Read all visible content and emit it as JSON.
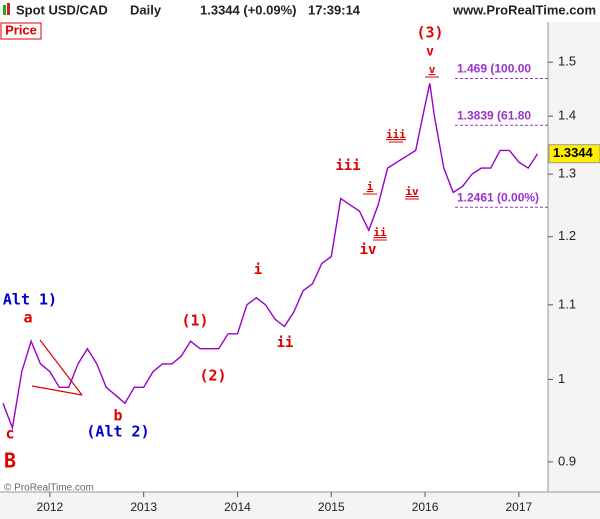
{
  "chart_data": {
    "type": "line",
    "title": "Spot USD/CAD",
    "timeframe": "Daily",
    "change": "1.3344 (+0.09%)",
    "time": "17:39:14",
    "site": "www.ProRealTime.com",
    "panel_label": "Price",
    "copyright": "© ProRealTime.com",
    "last_price": 1.3344,
    "color": "#9900cc",
    "x": [
      2011.5,
      2011.6,
      2011.7,
      2011.8,
      2011.9,
      2012.0,
      2012.1,
      2012.2,
      2012.3,
      2012.4,
      2012.5,
      2012.6,
      2012.7,
      2012.8,
      2012.9,
      2013.0,
      2013.1,
      2013.2,
      2013.3,
      2013.4,
      2013.5,
      2013.6,
      2013.7,
      2013.8,
      2013.9,
      2014.0,
      2014.1,
      2014.2,
      2014.3,
      2014.4,
      2014.5,
      2014.6,
      2014.7,
      2014.8,
      2014.9,
      2015.0,
      2015.1,
      2015.2,
      2015.3,
      2015.4,
      2015.5,
      2015.6,
      2015.7,
      2015.8,
      2015.9,
      2016.0,
      2016.05,
      2016.1,
      2016.2,
      2016.3,
      2016.4,
      2016.5,
      2016.6,
      2016.7,
      2016.8,
      2016.9,
      2017.0,
      2017.1,
      2017.2
    ],
    "values": [
      0.97,
      0.94,
      1.01,
      1.05,
      1.02,
      1.01,
      0.99,
      0.99,
      1.02,
      1.04,
      1.02,
      0.99,
      0.98,
      0.97,
      0.99,
      0.99,
      1.01,
      1.02,
      1.02,
      1.03,
      1.05,
      1.04,
      1.04,
      1.04,
      1.06,
      1.06,
      1.1,
      1.11,
      1.1,
      1.08,
      1.07,
      1.09,
      1.12,
      1.13,
      1.16,
      1.17,
      1.26,
      1.25,
      1.24,
      1.21,
      1.25,
      1.31,
      1.32,
      1.33,
      1.34,
      1.42,
      1.46,
      1.4,
      1.31,
      1.27,
      1.28,
      1.3,
      1.31,
      1.31,
      1.34,
      1.34,
      1.32,
      1.31,
      1.3344
    ],
    "xlim": [
      2011.5,
      2017.3
    ],
    "xticks": [
      2012,
      2013,
      2014,
      2015,
      2016,
      2017
    ],
    "ylim": [
      0.866,
      1.579
    ],
    "yticks": [
      0.9,
      1,
      1.1,
      1.2,
      1.3,
      1.4,
      1.5
    ],
    "log_scale": true,
    "fib_levels": [
      {
        "value": 1.469,
        "label": "1.469 (100.00"
      },
      {
        "value": 1.3839,
        "label": "1.3839 (61.80"
      },
      {
        "value": 1.2461,
        "label": "1.2461 (0.00%)"
      }
    ],
    "annotations": [
      {
        "text": "(3)",
        "color": "#e00000"
      },
      {
        "text": "v",
        "color": "#e00000"
      },
      {
        "text": "v",
        "color": "#e00000"
      },
      {
        "text": "iii",
        "color": "#e00000"
      },
      {
        "text": "iii",
        "color": "#e00000"
      },
      {
        "text": "i",
        "color": "#e00000"
      },
      {
        "text": "ii",
        "color": "#e00000"
      },
      {
        "text": "iv",
        "color": "#e00000"
      },
      {
        "text": "iv",
        "color": "#e00000"
      },
      {
        "text": "i",
        "color": "#e00000"
      },
      {
        "text": "ii",
        "color": "#e00000"
      },
      {
        "text": "(1)",
        "color": "#e00000"
      },
      {
        "text": "(2)",
        "color": "#e00000"
      },
      {
        "text": "a",
        "color": "#e00000"
      },
      {
        "text": "b",
        "color": "#e00000"
      },
      {
        "text": "c",
        "color": "#e00000"
      },
      {
        "text": "Alt 1)",
        "color": "#0000cc"
      },
      {
        "text": "(Alt 2)",
        "color": "#0000cc"
      },
      {
        "text": "B",
        "color": "#e00000"
      }
    ]
  }
}
